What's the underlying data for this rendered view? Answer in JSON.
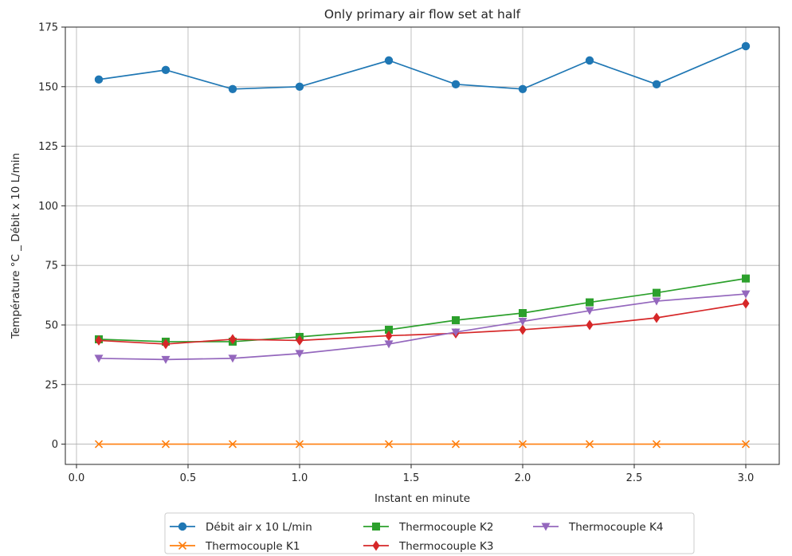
{
  "chart_data": {
    "type": "line",
    "title": "Only primary air flow set at half",
    "xlabel": "Instant en minute",
    "ylabel": "Température °C _ Débit x 10 L/min",
    "xlim": [
      -0.05,
      3.15
    ],
    "ylim": [
      -8.5,
      175
    ],
    "xticks": [
      0.0,
      0.5,
      1.0,
      1.5,
      2.0,
      2.5,
      3.0
    ],
    "xtick_labels": [
      "0.0",
      "0.5",
      "1.0",
      "1.5",
      "2.0",
      "2.5",
      "3.0"
    ],
    "yticks": [
      0,
      25,
      50,
      75,
      100,
      125,
      150,
      175
    ],
    "ytick_labels": [
      "0",
      "25",
      "50",
      "75",
      "100",
      "125",
      "150",
      "175"
    ],
    "grid": true,
    "legend_position": "bottom-center",
    "x": [
      0.1,
      0.4,
      0.7,
      1.0,
      1.4,
      1.7,
      2.0,
      2.3,
      2.6,
      3.0
    ],
    "series": [
      {
        "name": "Débit air x 10 L/min",
        "color": "#1f77b4",
        "marker": "circle",
        "values": [
          153,
          157,
          149,
          150,
          161,
          151,
          149,
          161,
          151,
          167
        ]
      },
      {
        "name": "Thermocouple K1",
        "color": "#ff7f0e",
        "marker": "x",
        "values": [
          0,
          0,
          0,
          0,
          0,
          0,
          0,
          0,
          0,
          0
        ]
      },
      {
        "name": "Thermocouple K2",
        "color": "#2ca02c",
        "marker": "square",
        "values": [
          44,
          43,
          43,
          45,
          48,
          52,
          55,
          59.5,
          63.5,
          69.5
        ]
      },
      {
        "name": "Thermocouple K3",
        "color": "#d62728",
        "marker": "diamond",
        "values": [
          43.5,
          42,
          44,
          43.5,
          45.5,
          46.5,
          48,
          50,
          53,
          59
        ]
      },
      {
        "name": "Thermocouple K4",
        "color": "#9467bd",
        "marker": "triangle-down",
        "values": [
          36,
          35.5,
          36,
          38,
          42,
          47,
          51.5,
          56,
          60,
          63
        ]
      }
    ]
  }
}
